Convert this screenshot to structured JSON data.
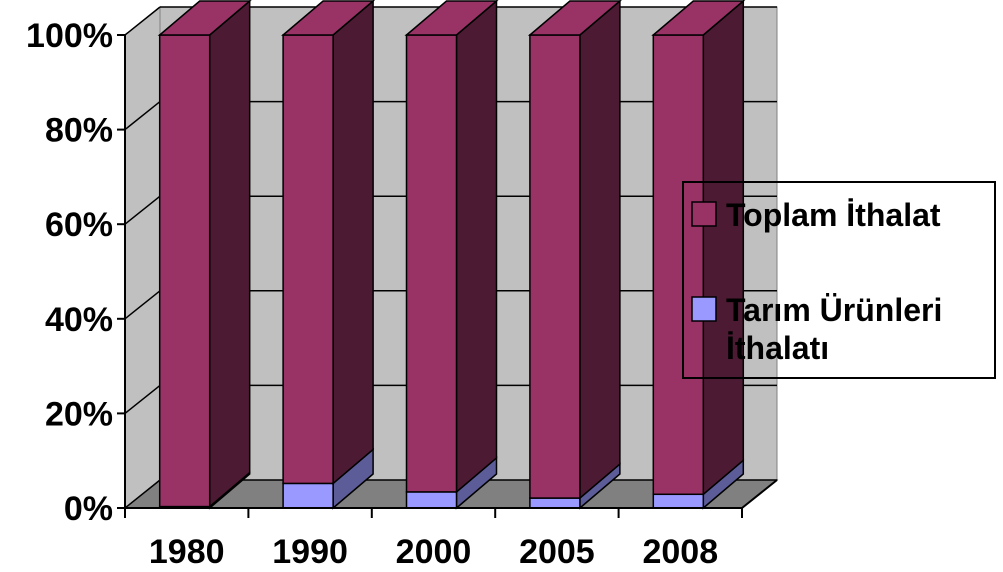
{
  "chart_data": {
    "type": "bar",
    "stacked": true,
    "percent_stacked": true,
    "three_d": true,
    "categories": [
      "1980",
      "1990",
      "2000",
      "2005",
      "2008"
    ],
    "series": [
      {
        "name": "Tarım Ürünleri İthalatı",
        "values": [
          0.3,
          5.2,
          3.4,
          2.1,
          2.9
        ],
        "color": "#9999ff",
        "side_color": "#5c5c99"
      },
      {
        "name": "Toplam İthalat",
        "values": [
          99.7,
          94.8,
          96.6,
          97.9,
          97.1
        ],
        "color": "#993366",
        "side_color": "#4d1a33"
      }
    ],
    "ylim": [
      0,
      100
    ],
    "y_ticks": [
      "0%",
      "20%",
      "40%",
      "60%",
      "80%",
      "100%"
    ],
    "grid": true,
    "legend_position": "right",
    "legend": [
      {
        "label": "Toplam İthalat",
        "color": "#993366"
      },
      {
        "label_lines": [
          "Tarım Ürünleri",
          "İthalatı"
        ],
        "color": "#9999ff"
      }
    ],
    "wall_color": "#c0c0c0",
    "floor_color": "#808080"
  }
}
